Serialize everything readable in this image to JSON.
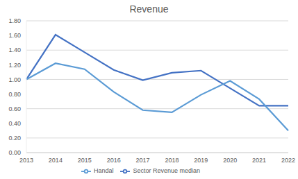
{
  "chart_data": {
    "type": "line",
    "title": "Revenue",
    "categories": [
      "2013",
      "2014",
      "2015",
      "2016",
      "2017",
      "2018",
      "2019",
      "2020",
      "2021",
      "2022"
    ],
    "series": [
      {
        "name": "Sector Revenue median",
        "color": "#4472c4",
        "values": [
          1.0,
          1.61,
          1.37,
          1.13,
          0.99,
          1.09,
          1.12,
          0.88,
          0.64,
          0.64
        ]
      },
      {
        "name": "Handal",
        "color": "#5b9bd5",
        "values": [
          1.0,
          1.22,
          1.14,
          0.83,
          0.58,
          0.55,
          0.79,
          0.98,
          0.73,
          0.3
        ]
      }
    ],
    "ylim": [
      0,
      1.8
    ],
    "yticks": [
      {
        "value": 0,
        "label": "0.00"
      },
      {
        "value": 0.2,
        "label": "0.20"
      },
      {
        "value": 0.4,
        "label": "0.40"
      },
      {
        "value": 0.6,
        "label": "0.60"
      },
      {
        "value": 0.8,
        "label": "0.80"
      },
      {
        "value": 1,
        "label": "1.00"
      },
      {
        "value": 1.2,
        "label": "1.20"
      },
      {
        "value": 1.4,
        "label": "1.40"
      },
      {
        "value": 1.6,
        "label": "1.60"
      },
      {
        "value": 1.8,
        "label": "1.80"
      }
    ],
    "grid": true,
    "legend": "bottom"
  }
}
